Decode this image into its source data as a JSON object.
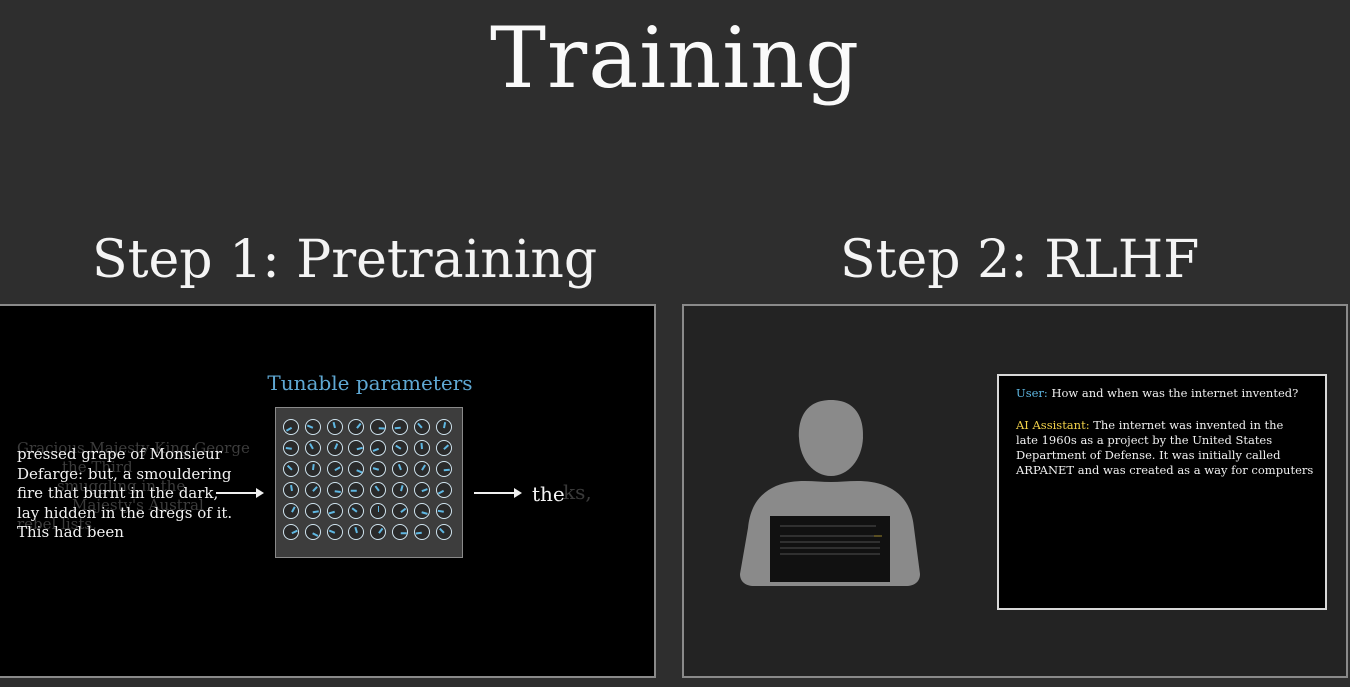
{
  "title": "Training",
  "step1": {
    "title": "Step 1: Pretraining",
    "params_label": "Tunable parameters",
    "input_lines": [
      "pressed grape of Monsieur",
      "Defarge: but, a smouldering",
      "fire that burnt in the dark,",
      "lay hidden in the dregs of it.",
      "This had been"
    ],
    "ghost_lines": [
      "Gracious Majesty King George",
      "the Third",
      "smuggling in the",
      "Majesty's Austral",
      "rebel lists,"
    ],
    "output_word": "the",
    "output_ghost": "ks,",
    "dial_grid": {
      "rows": 6,
      "cols": 8
    }
  },
  "step2": {
    "title": "Step 2: RLHF",
    "chat": {
      "user_label": "User:",
      "user_text": "How and when was the internet invented?",
      "ai_label": "AI Assistant:",
      "ai_lines": [
        "The internet was invented in the",
        "late 1960s as a project by the United States",
        "Department of Defense. It was initially called",
        "ARPANET and was created as a way for computers"
      ]
    }
  },
  "colors": {
    "background": "#2e2e2e",
    "accent_blue": "#5fa8d3",
    "accent_yellow": "#f2d24a",
    "person_gray": "#8a8a8a"
  },
  "icons": [
    "dial-icon",
    "arrow-right-icon",
    "person-at-laptop-icon"
  ]
}
